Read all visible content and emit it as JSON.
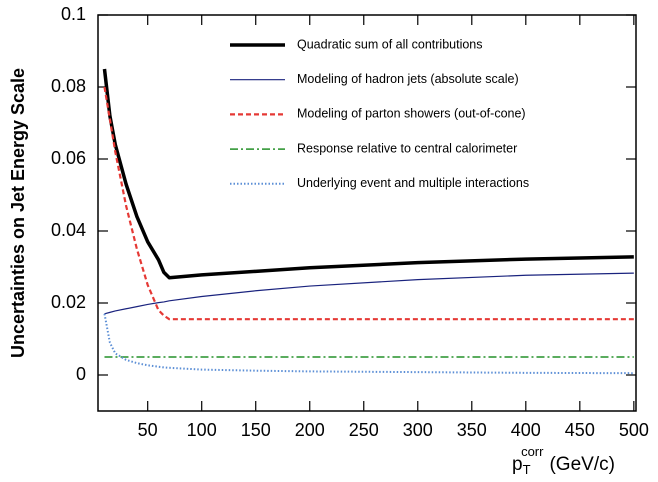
{
  "chart_data": {
    "type": "line",
    "y_label": "Uncertainties on Jet Energy Scale",
    "x_label": {
      "base": "p",
      "sub": "T",
      "sup": "corr",
      "unit": "(GeV/c)"
    },
    "x": [
      10,
      15,
      20,
      30,
      40,
      50,
      60,
      65,
      70,
      100,
      150,
      200,
      300,
      400,
      500
    ],
    "series": [
      {
        "name": "Quadratic sum of all contributions",
        "color": "#000000",
        "style": "solid",
        "linewidth": 3.5,
        "values": [
          0.085,
          0.072,
          0.064,
          0.053,
          0.044,
          0.037,
          0.032,
          0.0285,
          0.027,
          0.0278,
          0.0288,
          0.0298,
          0.0312,
          0.0322,
          0.0328
        ]
      },
      {
        "name": "Modeling of hadron jets (absolute scale)",
        "color": "#1a237e",
        "style": "solid",
        "linewidth": 1.2,
        "values": [
          0.017,
          0.0174,
          0.0178,
          0.0184,
          0.019,
          0.0196,
          0.0201,
          0.0203,
          0.0206,
          0.0218,
          0.0234,
          0.0247,
          0.0265,
          0.0277,
          0.0283
        ]
      },
      {
        "name": "Modeling of parton showers (out-of-cone)",
        "color": "#e53935",
        "style": "dashed",
        "linewidth": 2.2,
        "values": [
          0.08,
          0.071,
          0.062,
          0.047,
          0.035,
          0.025,
          0.018,
          0.0165,
          0.0155,
          0.0155,
          0.0155,
          0.0155,
          0.0155,
          0.0155,
          0.0155
        ]
      },
      {
        "name": "Response relative to central calorimeter",
        "color": "#43a047",
        "style": "dashdot",
        "linewidth": 1.8,
        "values": [
          0.005,
          0.005,
          0.005,
          0.005,
          0.005,
          0.005,
          0.005,
          0.005,
          0.005,
          0.005,
          0.005,
          0.005,
          0.005,
          0.005,
          0.005
        ]
      },
      {
        "name": "Underlying event and multiple interactions",
        "color": "#5c8fd6",
        "style": "dotted",
        "linewidth": 2,
        "values": [
          0.017,
          0.009,
          0.006,
          0.0042,
          0.0033,
          0.0027,
          0.0023,
          0.0021,
          0.002,
          0.0015,
          0.0012,
          0.001,
          0.0008,
          0.0006,
          0.0005
        ]
      }
    ],
    "xlim": [
      4,
      502
    ],
    "ylim": [
      -0.01,
      0.1
    ],
    "xticks": [
      50,
      100,
      150,
      200,
      250,
      300,
      350,
      400,
      450,
      500
    ],
    "yticks": [
      0,
      0.02,
      0.04,
      0.06,
      0.08,
      0.1
    ],
    "legend": "top-right"
  }
}
